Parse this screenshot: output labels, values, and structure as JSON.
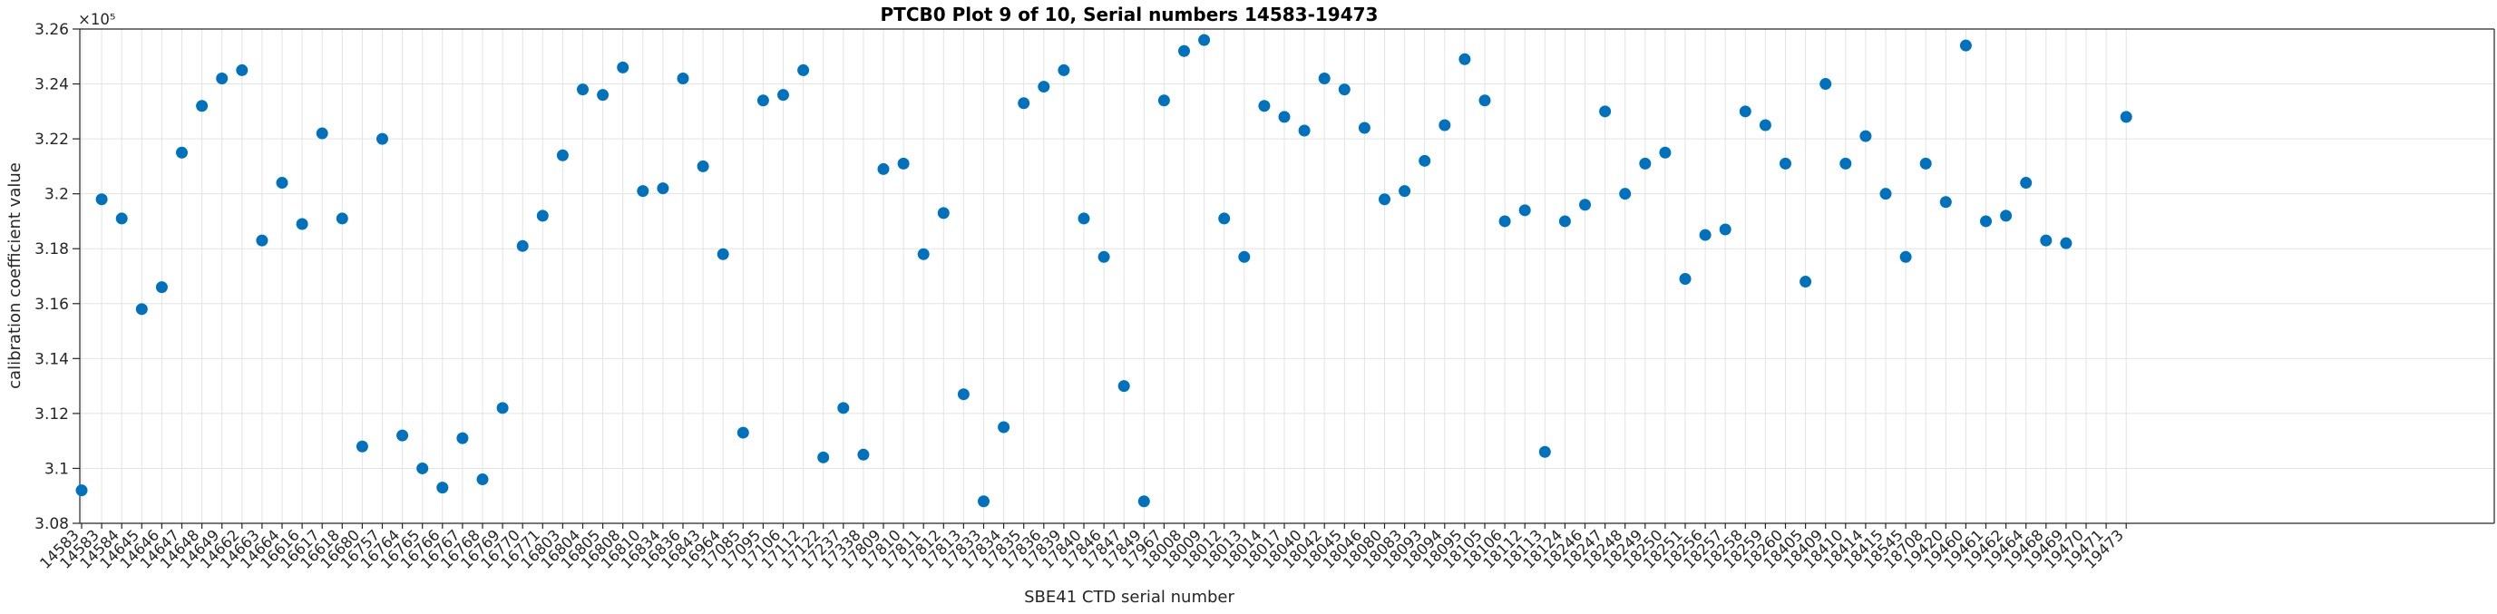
{
  "figure": {
    "title": "PTCB0 Plot 9 of 10, Serial numbers 14583-19473",
    "xlabel": "SBE41 CTD serial number",
    "ylabel": "calibration coefficient value",
    "exponent_label": "×10⁵"
  },
  "chart_data": {
    "type": "scatter",
    "title": "PTCB0 Plot 9 of 10, Serial numbers 14583-19473",
    "xlabel": "SBE41 CTD serial number",
    "ylabel": "calibration coefficient value",
    "y_unit_exponent": "×10⁵",
    "marker_color": "#0072BD",
    "grid": true,
    "legend": false,
    "ylim": [
      3.08,
      3.26
    ],
    "y_ticks": [
      3.08,
      3.1,
      3.12,
      3.14,
      3.16,
      3.18,
      3.2,
      3.22,
      3.24,
      3.26
    ],
    "y_tick_labels": [
      "3.08",
      "3.1",
      "3.12",
      "3.14",
      "3.16",
      "3.18",
      "3.2",
      "3.22",
      "3.24",
      "3.26"
    ],
    "x_tick_labels": [
      "14583",
      "14583",
      "14584",
      "14645",
      "14646",
      "14647",
      "14648",
      "14649",
      "14662",
      "14663",
      "14664",
      "16616",
      "16617",
      "16618",
      "16680",
      "16757",
      "16764",
      "16765",
      "16766",
      "16767",
      "16768",
      "16769",
      "16770",
      "16771",
      "16803",
      "16804",
      "16805",
      "16808",
      "16810",
      "16834",
      "16836",
      "16843",
      "16964",
      "17085",
      "17095",
      "17106",
      "17112",
      "17122",
      "17237",
      "17338",
      "17809",
      "17810",
      "17811",
      "17812",
      "17813",
      "17833",
      "17834",
      "17835",
      "17836",
      "17839",
      "17840",
      "17846",
      "17847",
      "17849",
      "17967",
      "18008",
      "18009",
      "18012",
      "18013",
      "18014",
      "18017",
      "18040",
      "18042",
      "18045",
      "18046",
      "18080",
      "18083",
      "18093",
      "18094",
      "18095",
      "18105",
      "18106",
      "18112",
      "18113",
      "18124",
      "18246",
      "18247",
      "18248",
      "18249",
      "18250",
      "18251",
      "18256",
      "18257",
      "18258",
      "18259",
      "18260",
      "18405",
      "18409",
      "18410",
      "18414",
      "18415",
      "18545",
      "18708",
      "19420",
      "19460",
      "19461",
      "19462",
      "19464",
      "19468",
      "19469",
      "19470",
      "19471",
      "19473"
    ],
    "series": [
      {
        "name": "calibration coefficient value",
        "marker": "filled-circle",
        "values": [
          3.092,
          3.198,
          3.191,
          3.158,
          3.166,
          3.215,
          3.232,
          3.242,
          3.245,
          3.183,
          3.204,
          3.189,
          3.222,
          3.191,
          3.108,
          3.22,
          3.112,
          3.1,
          3.093,
          3.111,
          3.096,
          3.122,
          3.181,
          3.192,
          3.214,
          3.238,
          3.236,
          3.246,
          3.201,
          3.202,
          3.242,
          3.21,
          3.178,
          3.113,
          3.234,
          3.236,
          3.245,
          3.104,
          3.122,
          3.105,
          3.209,
          3.211,
          3.178,
          3.193,
          3.127,
          3.088,
          3.115,
          3.233,
          3.239,
          3.245,
          3.191,
          3.177,
          3.13,
          3.088,
          3.234,
          3.252,
          3.256,
          3.191,
          3.177,
          3.232,
          3.228,
          3.223,
          3.242,
          3.238,
          3.224,
          3.198,
          3.201,
          3.212,
          3.225,
          3.249,
          3.234,
          3.19,
          3.194,
          3.106,
          3.19,
          3.196,
          3.23,
          3.2,
          3.211,
          3.215,
          3.169,
          3.185,
          3.187,
          3.23,
          3.225,
          3.211,
          3.168,
          3.24,
          3.211,
          3.221,
          3.2,
          3.177,
          3.211,
          3.197,
          3.254,
          3.19,
          3.192,
          3.204,
          3.183,
          3.182,
          null,
          null,
          3.228
        ]
      }
    ]
  }
}
